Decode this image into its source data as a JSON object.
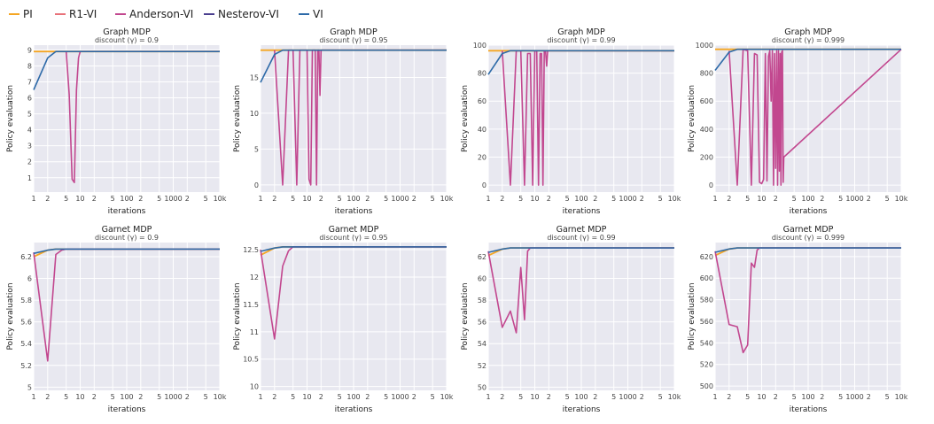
{
  "legend": [
    {
      "name": "PI",
      "color": "#f5a623"
    },
    {
      "name": "R1-VI",
      "color": "#e8727a"
    },
    {
      "name": "Anderson-VI",
      "color": "#c2478f"
    },
    {
      "name": "Nesterov-VI",
      "color": "#4b3f8f"
    },
    {
      "name": "VI",
      "color": "#2d6aa8"
    }
  ],
  "xticks": [
    {
      "v": 1,
      "t": "1"
    },
    {
      "v": 2,
      "t": "2"
    },
    {
      "v": 5,
      "t": "5"
    },
    {
      "v": 10,
      "t": "10"
    },
    {
      "v": 20,
      "t": "2"
    },
    {
      "v": 50,
      "t": "5"
    },
    {
      "v": 100,
      "t": "100"
    },
    {
      "v": 200,
      "t": "2"
    },
    {
      "v": 500,
      "t": "5"
    },
    {
      "v": 1000,
      "t": "1000"
    },
    {
      "v": 2000,
      "t": "2"
    },
    {
      "v": 5000,
      "t": "5"
    },
    {
      "v": 10000,
      "t": "10k"
    }
  ],
  "chart_data": [
    {
      "type": "line",
      "title": "Graph MDP",
      "subtitle": "discount (γ) = 0.9",
      "xlabel": "iterations",
      "ylabel": "Policy evaluation",
      "xscale": "log",
      "xlim": [
        1,
        10000
      ],
      "ylim": [
        0.1,
        9.3
      ],
      "yticks": [
        {
          "v": 1,
          "t": "1"
        },
        {
          "v": 2,
          "t": "2"
        },
        {
          "v": 3,
          "t": "3"
        },
        {
          "v": 4,
          "t": "4"
        },
        {
          "v": 5,
          "t": "5"
        },
        {
          "v": 6,
          "t": "6"
        },
        {
          "v": 7,
          "t": "7"
        },
        {
          "v": 8,
          "t": "8"
        },
        {
          "v": 9,
          "t": "9"
        }
      ],
      "series": [
        {
          "name": "PI",
          "x": [
            1,
            10000
          ],
          "y": [
            8.9,
            8.9
          ]
        },
        {
          "name": "Anderson-VI",
          "x": [
            5,
            5.8,
            6.7,
            7.5,
            8.3,
            9.2,
            10,
            10000
          ],
          "y": [
            8.9,
            6.2,
            0.9,
            0.7,
            6.5,
            8.5,
            8.9,
            8.9
          ]
        },
        {
          "name": "VI",
          "x": [
            1,
            2,
            3,
            5,
            10000
          ],
          "y": [
            6.5,
            8.5,
            8.9,
            8.9,
            8.9
          ]
        }
      ]
    },
    {
      "type": "line",
      "title": "Graph MDP",
      "subtitle": "discount (γ) = 0.95",
      "xlabel": "iterations",
      "ylabel": "Policy evaluation",
      "xscale": "log",
      "xlim": [
        1,
        10000
      ],
      "ylim": [
        -1,
        19.5
      ],
      "yticks": [
        {
          "v": 0,
          "t": "0"
        },
        {
          "v": 5,
          "t": "5"
        },
        {
          "v": 10,
          "t": "10"
        },
        {
          "v": 15,
          "t": "15"
        }
      ],
      "series": [
        {
          "name": "PI",
          "x": [
            1,
            10000
          ],
          "y": [
            18.8,
            18.8
          ]
        },
        {
          "name": "Anderson-VI",
          "x": [
            2,
            3,
            4,
            5,
            6,
            7,
            8,
            9,
            10,
            11,
            12,
            13,
            14,
            15,
            16,
            17,
            18,
            19,
            20,
            10000
          ],
          "y": [
            18.8,
            0,
            18.8,
            18.8,
            0,
            18.8,
            18.8,
            18.8,
            18.8,
            0.8,
            0,
            18.8,
            18.8,
            18.8,
            0,
            18.8,
            18.8,
            12.5,
            18.8,
            18.8
          ]
        },
        {
          "name": "VI",
          "x": [
            1,
            2,
            3,
            5,
            10000
          ],
          "y": [
            14.3,
            18.2,
            18.8,
            18.8,
            18.8
          ]
        }
      ]
    },
    {
      "type": "line",
      "title": "Graph MDP",
      "subtitle": "discount (γ) = 0.99",
      "xlabel": "iterations",
      "ylabel": "Policy evaluation",
      "xscale": "log",
      "xlim": [
        1,
        10000
      ],
      "ylim": [
        -5,
        100
      ],
      "yticks": [
        {
          "v": 0,
          "t": "0"
        },
        {
          "v": 20,
          "t": "20"
        },
        {
          "v": 40,
          "t": "40"
        },
        {
          "v": 60,
          "t": "60"
        },
        {
          "v": 80,
          "t": "80"
        },
        {
          "v": 100,
          "t": "100"
        }
      ],
      "series": [
        {
          "name": "PI",
          "x": [
            1,
            10000
          ],
          "y": [
            96,
            96
          ]
        },
        {
          "name": "Anderson-VI",
          "x": [
            2,
            3,
            4,
            5,
            6,
            7,
            8,
            9,
            10,
            11,
            12,
            13,
            14,
            15,
            16,
            17,
            18,
            19,
            20,
            10000
          ],
          "y": [
            96,
            0,
            96,
            96,
            0,
            94,
            94,
            0,
            96,
            96,
            0,
            94,
            94,
            0,
            96,
            96,
            85,
            96,
            96,
            96
          ]
        },
        {
          "name": "VI",
          "x": [
            1,
            2,
            3,
            5,
            10000
          ],
          "y": [
            79,
            94,
            96,
            96,
            96
          ]
        }
      ]
    },
    {
      "type": "line",
      "title": "Graph MDP",
      "subtitle": "discount (γ) = 0.999",
      "xlabel": "iterations",
      "ylabel": "Policy evaluation",
      "xscale": "log",
      "xlim": [
        1,
        10000
      ],
      "ylim": [
        -50,
        1000
      ],
      "yticks": [
        {
          "v": 0,
          "t": "0"
        },
        {
          "v": 200,
          "t": "200"
        },
        {
          "v": 400,
          "t": "400"
        },
        {
          "v": 600,
          "t": "600"
        },
        {
          "v": 800,
          "t": "800"
        },
        {
          "v": 1000,
          "t": "1000"
        }
      ],
      "series": [
        {
          "name": "PI",
          "x": [
            1,
            10000
          ],
          "y": [
            970,
            970
          ]
        },
        {
          "name": "Anderson-VI",
          "x": [
            2,
            3,
            4,
            5,
            6,
            7,
            8,
            9,
            10,
            11,
            12,
            13,
            14,
            15,
            16,
            17,
            18,
            19,
            20,
            21,
            22,
            23,
            24,
            25,
            26,
            27,
            28,
            29,
            30,
            10000
          ],
          "y": [
            960,
            0,
            970,
            960,
            0,
            940,
            930,
            20,
            10,
            40,
            940,
            30,
            920,
            960,
            600,
            960,
            0,
            940,
            120,
            960,
            0,
            960,
            100,
            940,
            0,
            950,
            960,
            20,
            200,
            970
          ]
        },
        {
          "name": "VI",
          "x": [
            1,
            2,
            3,
            5,
            10000
          ],
          "y": [
            820,
            950,
            970,
            970,
            970
          ]
        }
      ]
    },
    {
      "type": "line",
      "title": "Garnet MDP",
      "subtitle": "discount (γ) = 0.9",
      "xlabel": "iterations",
      "ylabel": "Policy evaluation",
      "xscale": "log",
      "xlim": [
        1,
        10000
      ],
      "ylim": [
        4.97,
        6.33
      ],
      "yticks": [
        {
          "v": 5,
          "t": "5"
        },
        {
          "v": 5.2,
          "t": "5.2"
        },
        {
          "v": 5.4,
          "t": "5.4"
        },
        {
          "v": 5.6,
          "t": "5.6"
        },
        {
          "v": 5.8,
          "t": "5.8"
        },
        {
          "v": 6,
          "t": "6"
        },
        {
          "v": 6.2,
          "t": "6.2"
        }
      ],
      "series": [
        {
          "name": "PI",
          "x": [
            1,
            2,
            3,
            10000
          ],
          "y": [
            6.2,
            6.26,
            6.27,
            6.27
          ]
        },
        {
          "name": "Anderson-VI",
          "x": [
            1,
            2,
            3,
            4,
            5,
            10000
          ],
          "y": [
            6.24,
            5.24,
            6.22,
            6.26,
            6.27,
            6.27
          ]
        },
        {
          "name": "VI",
          "x": [
            1,
            2,
            3,
            5,
            10000
          ],
          "y": [
            6.23,
            6.26,
            6.27,
            6.27,
            6.27
          ]
        }
      ]
    },
    {
      "type": "line",
      "title": "Garnet MDP",
      "subtitle": "discount (γ) = 0.95",
      "xlabel": "iterations",
      "ylabel": "Policy evaluation",
      "xscale": "log",
      "xlim": [
        1,
        10000
      ],
      "ylim": [
        9.93,
        12.63
      ],
      "yticks": [
        {
          "v": 10,
          "t": "10"
        },
        {
          "v": 10.5,
          "t": "10.5"
        },
        {
          "v": 11,
          "t": "11"
        },
        {
          "v": 11.5,
          "t": "11.5"
        },
        {
          "v": 12,
          "t": "12"
        },
        {
          "v": 12.5,
          "t": "12.5"
        }
      ],
      "series": [
        {
          "name": "PI",
          "x": [
            1,
            2,
            3,
            10000
          ],
          "y": [
            12.4,
            12.53,
            12.55,
            12.55
          ]
        },
        {
          "name": "Anderson-VI",
          "x": [
            1,
            2,
            3,
            4,
            5,
            10000
          ],
          "y": [
            12.5,
            10.87,
            12.2,
            12.48,
            12.55,
            12.55
          ]
        },
        {
          "name": "VI",
          "x": [
            1,
            2,
            3,
            5,
            10000
          ],
          "y": [
            12.47,
            12.53,
            12.55,
            12.55,
            12.55
          ]
        }
      ]
    },
    {
      "type": "line",
      "title": "Garnet MDP",
      "subtitle": "discount (γ) = 0.99",
      "xlabel": "iterations",
      "ylabel": "Policy evaluation",
      "xscale": "log",
      "xlim": [
        1,
        10000
      ],
      "ylim": [
        49.7,
        63.3
      ],
      "yticks": [
        {
          "v": 50,
          "t": "50"
        },
        {
          "v": 52,
          "t": "52"
        },
        {
          "v": 54,
          "t": "54"
        },
        {
          "v": 56,
          "t": "56"
        },
        {
          "v": 58,
          "t": "58"
        },
        {
          "v": 60,
          "t": "60"
        },
        {
          "v": 62,
          "t": "62"
        }
      ],
      "series": [
        {
          "name": "PI",
          "x": [
            1,
            2,
            3,
            10000
          ],
          "y": [
            62.1,
            62.7,
            62.8,
            62.8
          ]
        },
        {
          "name": "Anderson-VI",
          "x": [
            1,
            2,
            3,
            4,
            5,
            6,
            7,
            8,
            10000
          ],
          "y": [
            62.5,
            55.5,
            57.0,
            55.0,
            61.0,
            56.2,
            62.5,
            62.8,
            62.8
          ]
        },
        {
          "name": "VI",
          "x": [
            1,
            2,
            3,
            5,
            10000
          ],
          "y": [
            62.4,
            62.7,
            62.8,
            62.8,
            62.8
          ]
        }
      ]
    },
    {
      "type": "line",
      "title": "Garnet MDP",
      "subtitle": "discount (γ) = 0.999",
      "xlabel": "iterations",
      "ylabel": "Policy evaluation",
      "xscale": "log",
      "xlim": [
        1,
        10000
      ],
      "ylim": [
        496,
        633
      ],
      "yticks": [
        {
          "v": 500,
          "t": "500"
        },
        {
          "v": 520,
          "t": "520"
        },
        {
          "v": 540,
          "t": "540"
        },
        {
          "v": 560,
          "t": "560"
        },
        {
          "v": 580,
          "t": "580"
        },
        {
          "v": 600,
          "t": "600"
        },
        {
          "v": 620,
          "t": "620"
        }
      ],
      "series": [
        {
          "name": "PI",
          "x": [
            1,
            2,
            3,
            10000
          ],
          "y": [
            621,
            627,
            628,
            628
          ]
        },
        {
          "name": "Anderson-VI",
          "x": [
            1,
            2,
            3,
            4,
            5,
            6,
            7,
            8,
            9,
            10000
          ],
          "y": [
            625,
            557,
            555,
            531,
            538,
            614,
            610,
            626,
            628,
            628
          ]
        },
        {
          "name": "VI",
          "x": [
            1,
            2,
            3,
            5,
            10000
          ],
          "y": [
            624,
            627,
            628,
            628,
            628
          ]
        }
      ]
    }
  ]
}
